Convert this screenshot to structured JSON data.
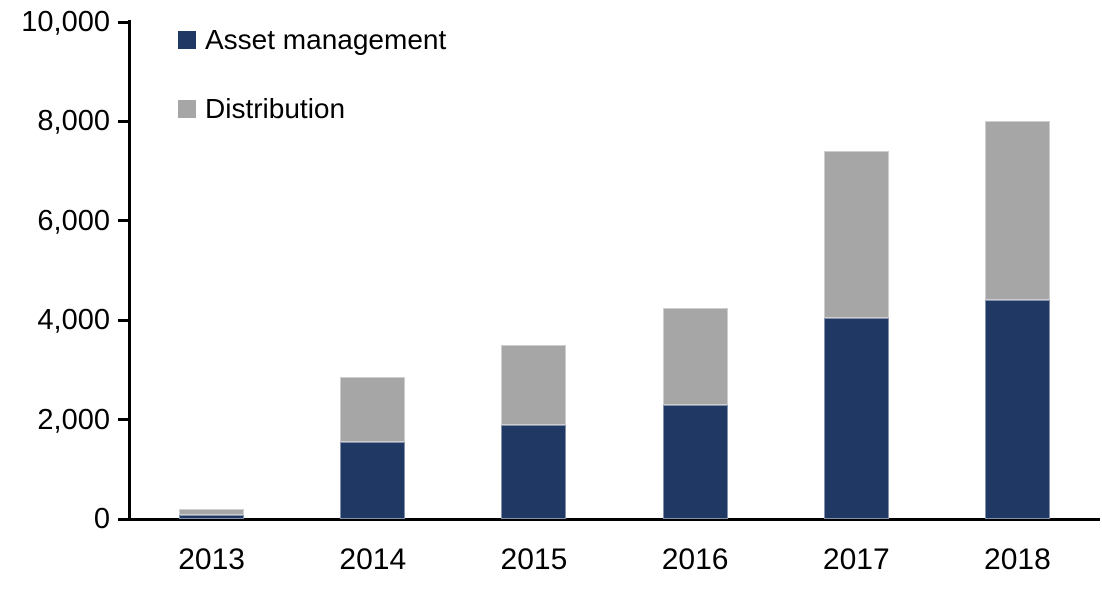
{
  "chart_data": {
    "type": "bar",
    "stacked": true,
    "title": "",
    "xlabel": "",
    "ylabel": "",
    "categories": [
      "2013",
      "2014",
      "2015",
      "2016",
      "2017",
      "2018"
    ],
    "series": [
      {
        "name": "Asset management",
        "color": "#203864",
        "values": [
          80,
          1550,
          1900,
          2300,
          4050,
          4400
        ]
      },
      {
        "name": "Distribution",
        "color": "#A6A6A6",
        "values": [
          120,
          1300,
          1600,
          1950,
          3350,
          3600
        ]
      }
    ],
    "ylim": [
      0,
      10000
    ],
    "yticks": [
      0,
      2000,
      4000,
      6000,
      8000,
      10000
    ],
    "ytick_labels": [
      "0",
      "2,000",
      "4,000",
      "6,000",
      "8,000",
      "10,000"
    ],
    "grid": false,
    "legend_position": "top-left-inside",
    "axis_color": "#000000",
    "text_color": "#000000"
  }
}
